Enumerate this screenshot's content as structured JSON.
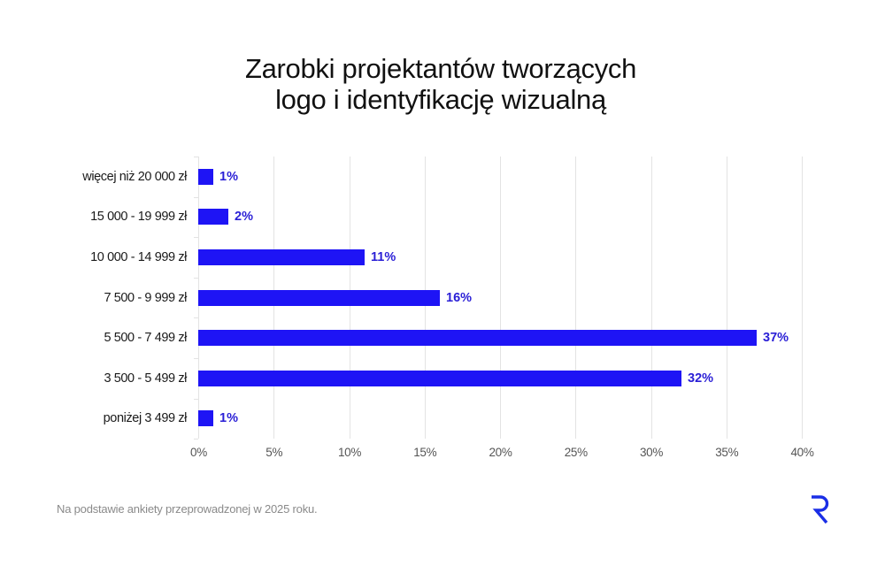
{
  "title": {
    "line1": "Zarobki projektantów tworzących",
    "line2": "logo i identyfikację wizualną"
  },
  "footnote": "Na podstawie ankiety przeprowadzonej w 2025 roku.",
  "logo": {
    "icon": "r-logo-icon",
    "color": "#1a2ee6"
  },
  "colors": {
    "bar": "#1e14f5",
    "value_label": "#2a1fd6",
    "grid": "#e3e3e3"
  },
  "chart_data": {
    "type": "bar",
    "orientation": "horizontal",
    "title": "Zarobki projektantów tworzących logo i identyfikację wizualną",
    "xlabel": "",
    "ylabel": "",
    "categories": [
      "więcej niż 20 000 zł",
      "15 000 - 19 999 zł",
      "10 000 - 14 999 zł",
      "7 500 - 9 999 zł",
      "5 500 - 7 499 zł",
      "3 500 - 5 499 zł",
      "poniżej 3 499 zł"
    ],
    "values": [
      1,
      2,
      11,
      16,
      37,
      32,
      1
    ],
    "value_labels": [
      "1%",
      "2%",
      "11%",
      "16%",
      "37%",
      "32%",
      "1%"
    ],
    "unit": "%",
    "xlim": [
      0,
      40
    ],
    "xticks": [
      "0%",
      "5%",
      "10%",
      "15%",
      "20%",
      "25%",
      "30%",
      "35%",
      "40%"
    ],
    "grid": "vertical",
    "legend": "none"
  }
}
